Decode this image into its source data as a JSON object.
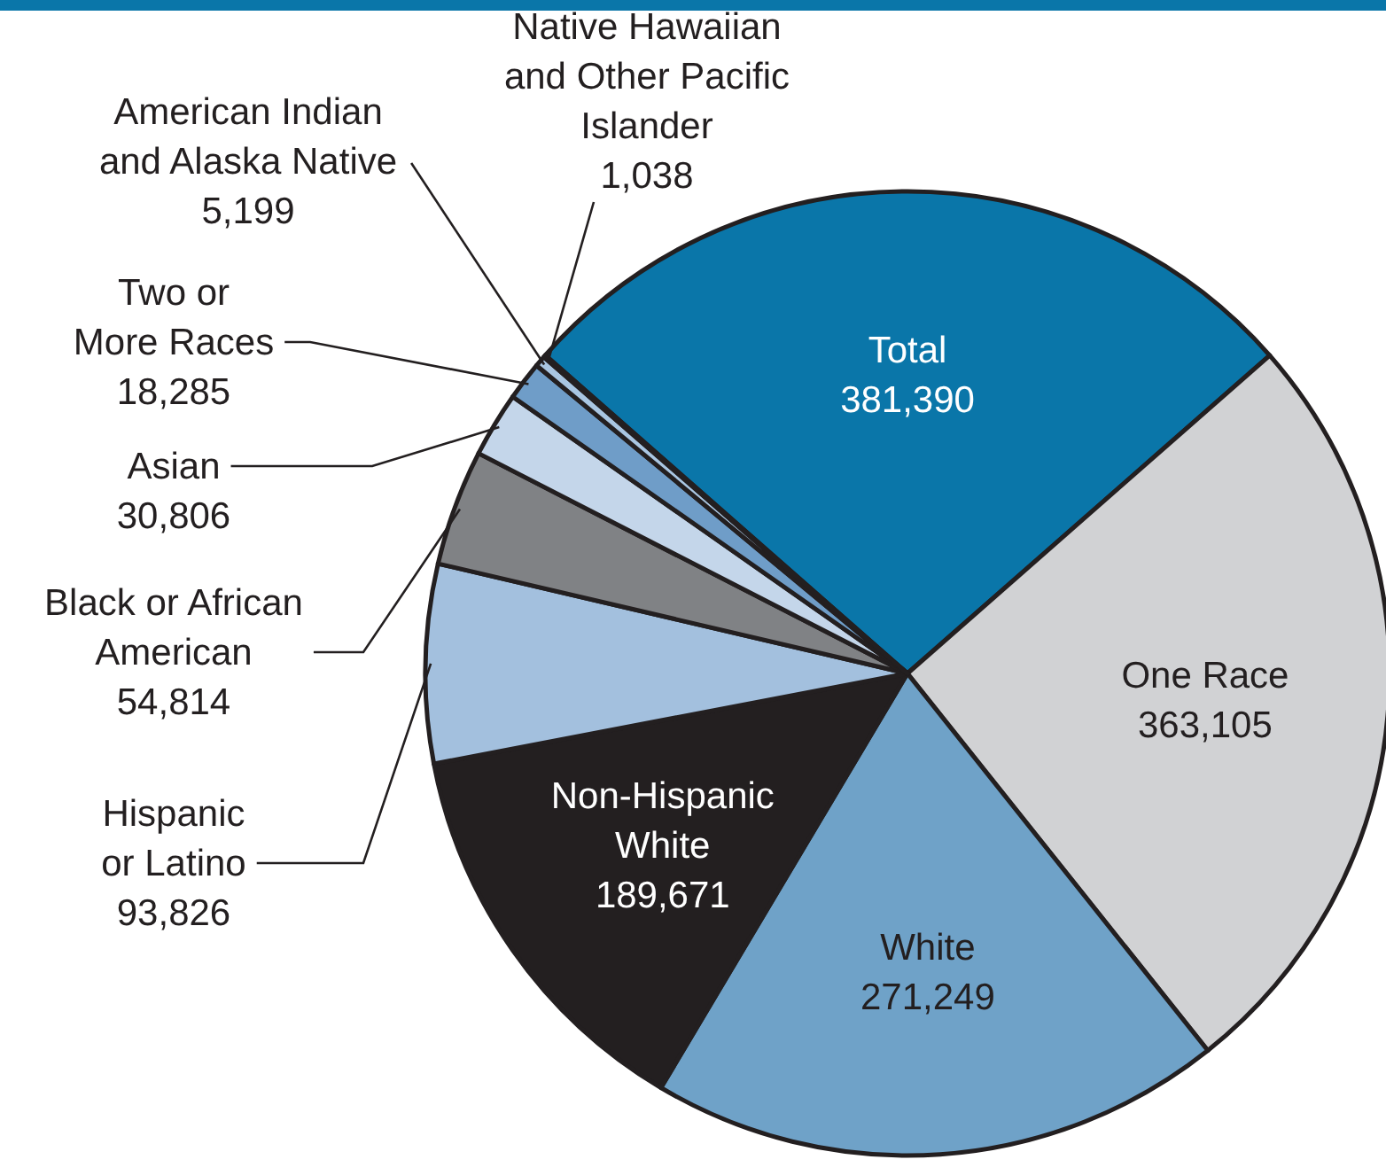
{
  "chart_data": {
    "type": "pie",
    "categories": [
      "Total",
      "One Race",
      "White",
      "Non-Hispanic White",
      "Hispanic or Latino",
      "Black or African American",
      "Asian",
      "Two or More Races",
      "American Indian and Alaska Native",
      "Native Hawaiian and Other Pacific Islander"
    ],
    "values": [
      381390,
      363105,
      271249,
      189671,
      93826,
      54814,
      30806,
      18285,
      5199,
      1038
    ],
    "colors": [
      "#0a76a9",
      "#d1d2d4",
      "#6fa2c8",
      "#231f20",
      "#a3c0de",
      "#808285",
      "#c4d6ea",
      "#6f9dc8",
      "#a9c6e2",
      "#e8eef6"
    ],
    "value_labels": [
      "381,390",
      "363,105",
      "271,249",
      "189,671",
      "93,826",
      "54,814",
      "30,806",
      "18,285",
      "5,199",
      "1,038"
    ]
  }
}
